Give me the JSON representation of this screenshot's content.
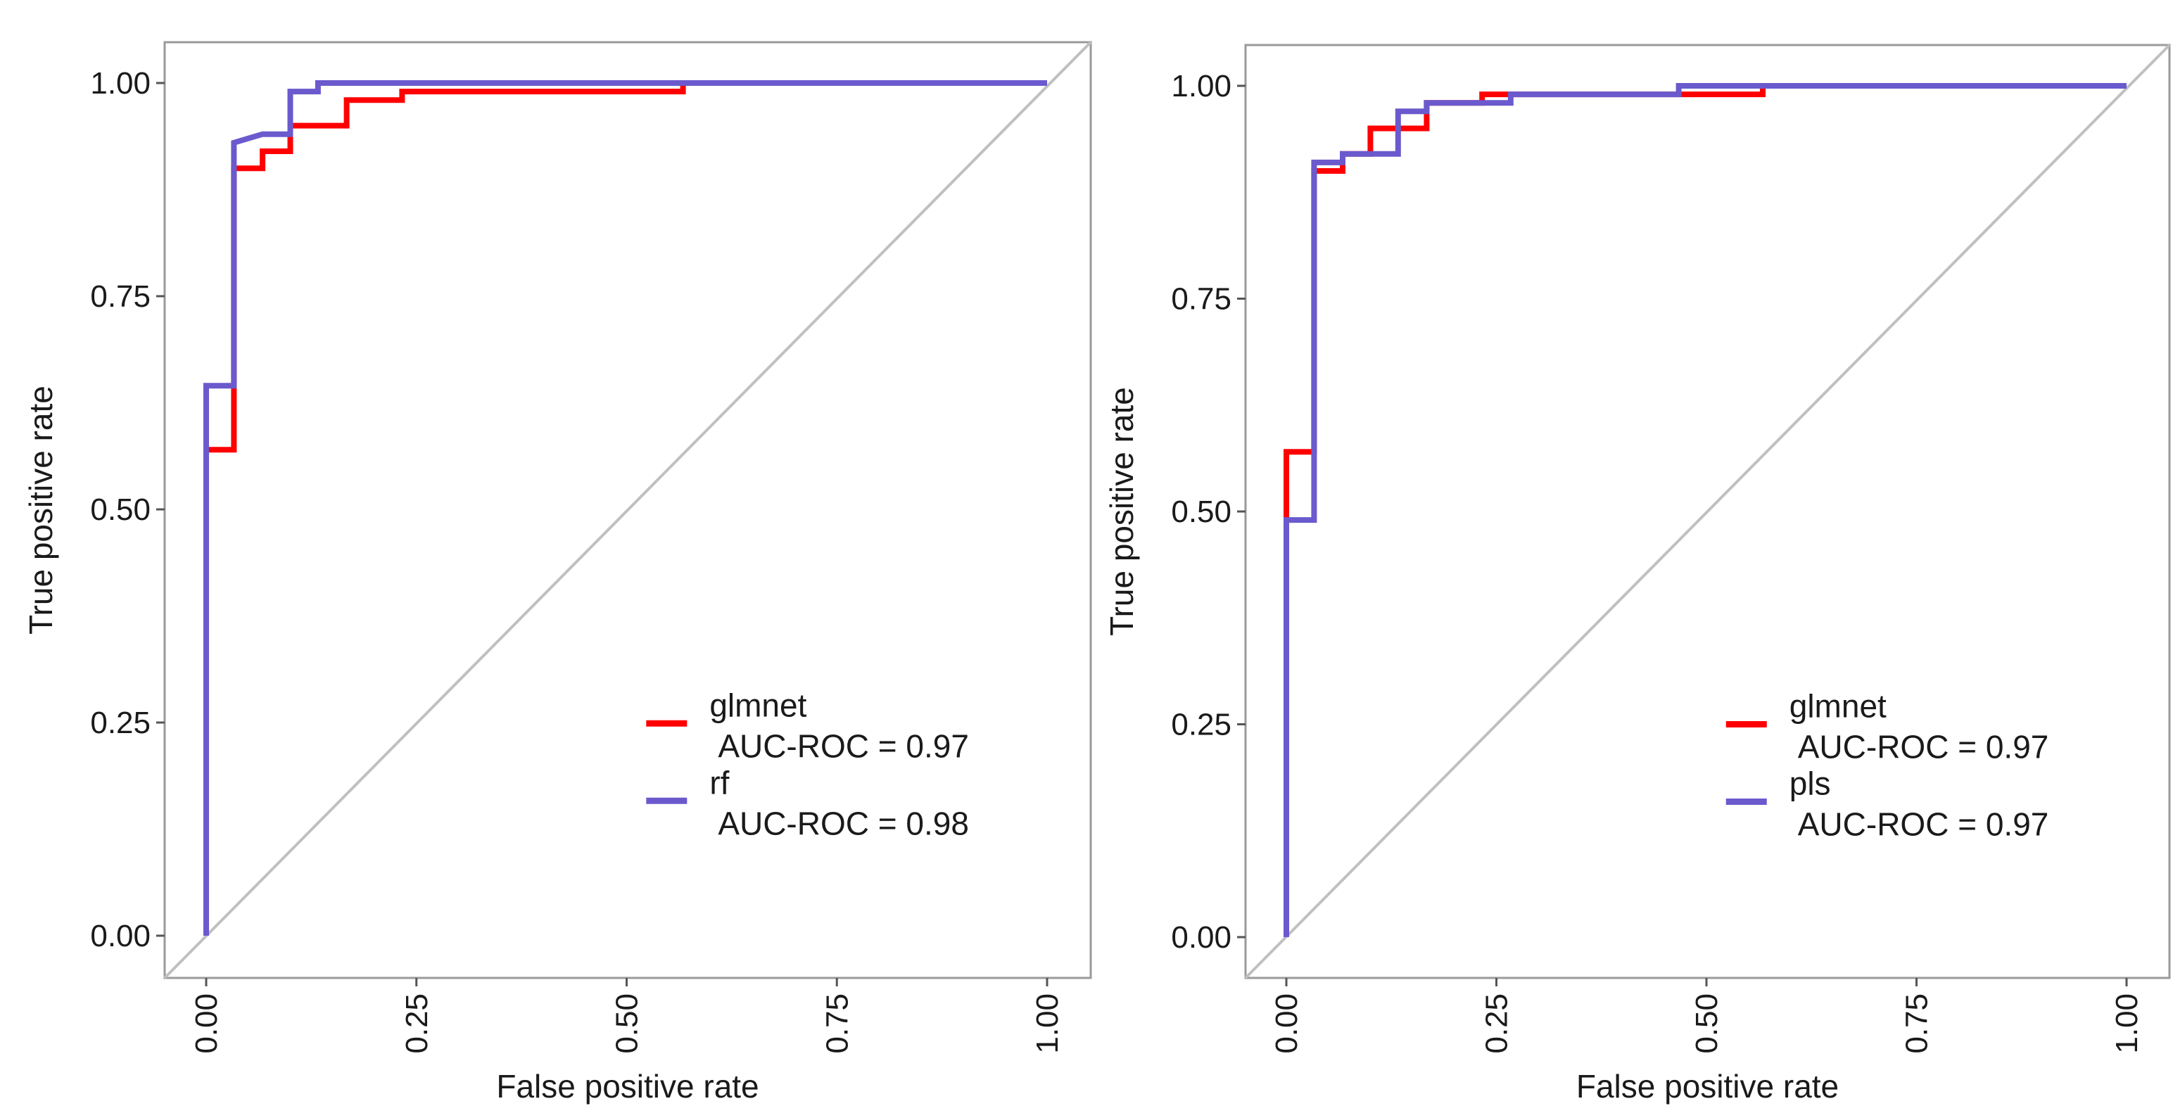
{
  "chart_data": [
    {
      "type": "line",
      "title": "",
      "xlabel": "False positive rate",
      "ylabel": "True positive rate",
      "xlim": [
        0,
        1
      ],
      "ylim": [
        0,
        1
      ],
      "xticks": [
        "0.00",
        "0.25",
        "0.50",
        "0.75",
        "1.00"
      ],
      "yticks": [
        "0.00",
        "0.25",
        "0.50",
        "0.75",
        "1.00"
      ],
      "grid": false,
      "legend_position": "bottom-right",
      "reference_line": {
        "from": [
          0,
          0
        ],
        "to": [
          1,
          1
        ],
        "color": "#c0c0c0"
      },
      "series": [
        {
          "name": "glmnet",
          "label_line1": "glmnet",
          "label_line2": "AUC-ROC = 0.97",
          "color": "#ff0000",
          "points": [
            [
              0,
              0
            ],
            [
              0,
              0.57
            ],
            [
              0.033,
              0.57
            ],
            [
              0.033,
              0.9
            ],
            [
              0.067,
              0.9
            ],
            [
              0.067,
              0.92
            ],
            [
              0.1,
              0.92
            ],
            [
              0.1,
              0.95
            ],
            [
              0.167,
              0.95
            ],
            [
              0.167,
              0.98
            ],
            [
              0.233,
              0.98
            ],
            [
              0.233,
              0.99
            ],
            [
              0.567,
              0.99
            ],
            [
              0.567,
              1.0
            ],
            [
              1.0,
              1.0
            ]
          ]
        },
        {
          "name": "rf",
          "label_line1": "rf",
          "label_line2": "AUC-ROC = 0.98",
          "color": "#6a5acd",
          "points": [
            [
              0,
              0
            ],
            [
              0,
              0.645
            ],
            [
              0.033,
              0.645
            ],
            [
              0.033,
              0.93
            ],
            [
              0.067,
              0.94
            ],
            [
              0.1,
              0.94
            ],
            [
              0.1,
              0.99
            ],
            [
              0.133,
              0.99
            ],
            [
              0.133,
              1.0
            ],
            [
              1.0,
              1.0
            ]
          ]
        }
      ]
    },
    {
      "type": "line",
      "title": "",
      "xlabel": "False positive rate",
      "ylabel": "True positive rate",
      "xlim": [
        0,
        1
      ],
      "ylim": [
        0,
        1
      ],
      "xticks": [
        "0.00",
        "0.25",
        "0.50",
        "0.75",
        "1.00"
      ],
      "yticks": [
        "0.00",
        "0.25",
        "0.50",
        "0.75",
        "1.00"
      ],
      "grid": false,
      "legend_position": "bottom-right",
      "reference_line": {
        "from": [
          0,
          0
        ],
        "to": [
          1,
          1
        ],
        "color": "#c0c0c0"
      },
      "series": [
        {
          "name": "glmnet",
          "label_line1": "glmnet",
          "label_line2": "AUC-ROC = 0.97",
          "color": "#ff0000",
          "points": [
            [
              0,
              0
            ],
            [
              0,
              0.57
            ],
            [
              0.033,
              0.57
            ],
            [
              0.033,
              0.9
            ],
            [
              0.067,
              0.9
            ],
            [
              0.067,
              0.92
            ],
            [
              0.1,
              0.92
            ],
            [
              0.1,
              0.95
            ],
            [
              0.167,
              0.95
            ],
            [
              0.167,
              0.98
            ],
            [
              0.233,
              0.98
            ],
            [
              0.233,
              0.99
            ],
            [
              0.467,
              0.99
            ],
            [
              0.567,
              0.99
            ],
            [
              0.567,
              1.0
            ],
            [
              1.0,
              1.0
            ]
          ]
        },
        {
          "name": "pls",
          "label_line1": "pls",
          "label_line2": "AUC-ROC = 0.97",
          "color": "#6a5acd",
          "points": [
            [
              0,
              0
            ],
            [
              0,
              0.49
            ],
            [
              0.033,
              0.49
            ],
            [
              0.033,
              0.91
            ],
            [
              0.067,
              0.91
            ],
            [
              0.067,
              0.92
            ],
            [
              0.133,
              0.92
            ],
            [
              0.133,
              0.97
            ],
            [
              0.167,
              0.97
            ],
            [
              0.167,
              0.98
            ],
            [
              0.267,
              0.98
            ],
            [
              0.267,
              0.99
            ],
            [
              0.467,
              0.99
            ],
            [
              0.467,
              1.0
            ],
            [
              1.0,
              1.0
            ]
          ]
        }
      ]
    }
  ]
}
